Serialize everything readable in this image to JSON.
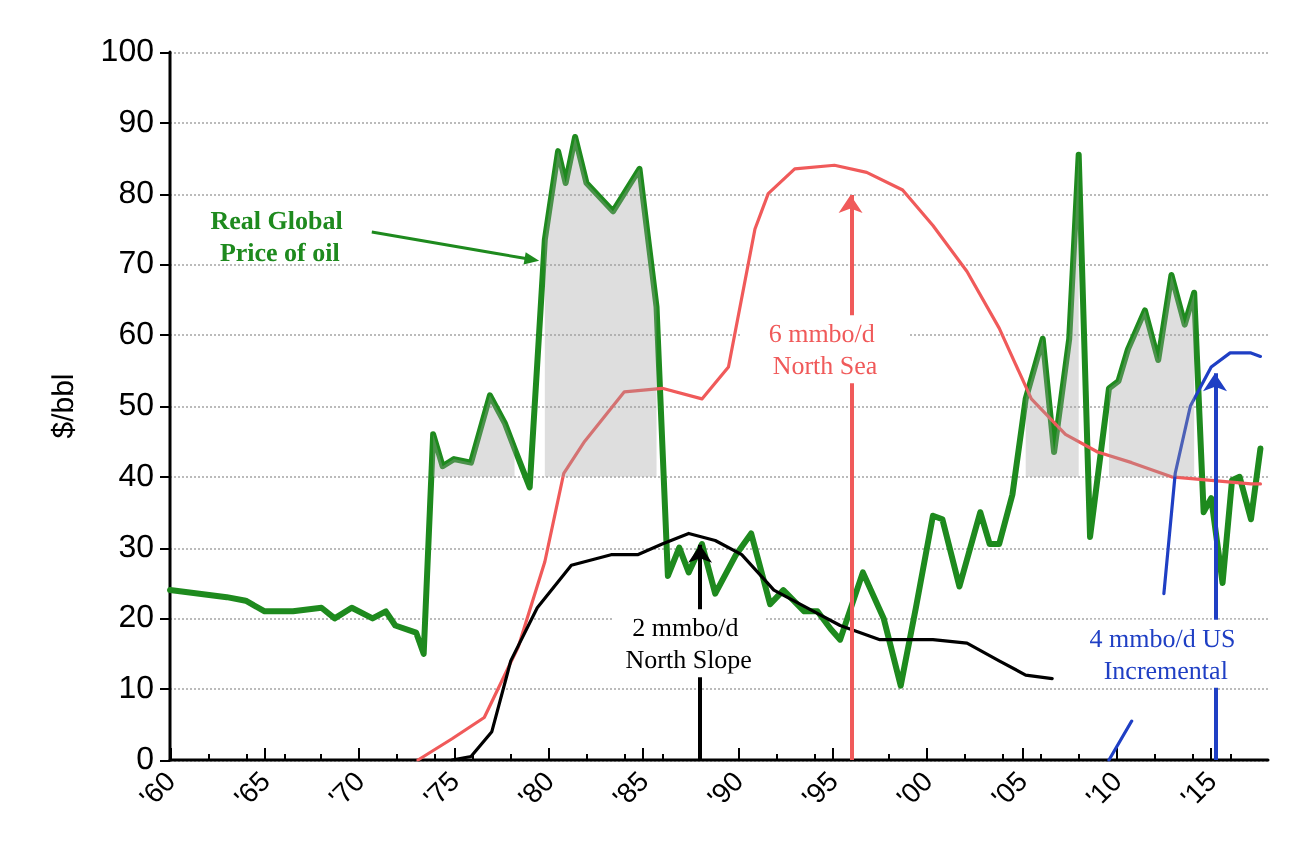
{
  "chart_data": {
    "type": "line",
    "ylabel": "$/bbl",
    "xlim": [
      1960,
      2018
    ],
    "ylim": [
      0,
      100
    ],
    "xticks": [
      {
        "value": 1960,
        "label": "'60"
      },
      {
        "value": 1965,
        "label": "'65"
      },
      {
        "value": 1970,
        "label": "'70"
      },
      {
        "value": 1975,
        "label": "'75"
      },
      {
        "value": 1980,
        "label": "'80"
      },
      {
        "value": 1985,
        "label": "'85"
      },
      {
        "value": 1990,
        "label": "'90"
      },
      {
        "value": 1995,
        "label": "'95"
      },
      {
        "value": 2000,
        "label": "'00"
      },
      {
        "value": 2005,
        "label": "'05"
      },
      {
        "value": 2010,
        "label": "'10"
      },
      {
        "value": 2015,
        "label": "'15"
      }
    ],
    "yticks": [
      0,
      10,
      20,
      30,
      40,
      50,
      60,
      70,
      80,
      90,
      100
    ],
    "grid": "y",
    "line_style": "solid",
    "marker": "none",
    "series": [
      {
        "name": "Real Global Price of oil",
        "color": "#1e8a1e",
        "x": [
          1960,
          1963,
          1964,
          1965,
          1966.5,
          1968,
          1968.7,
          1969.6,
          1970.7,
          1971.4,
          1971.9,
          1973,
          1973.4,
          1973.9,
          1974.4,
          1975,
          1975.9,
          1976.9,
          1977.7,
          1978.2,
          1979,
          1979.8,
          1980.5,
          1980.9,
          1981.4,
          1982,
          1983.4,
          1984.8,
          1985.7,
          1986.3,
          1986.9,
          1987.4,
          1988.1,
          1988.8,
          1989.9,
          1990.7,
          1991.7,
          1992.4,
          1993.5,
          1994.2,
          1994.9,
          1995.4,
          1996.6,
          1997.7,
          1998.6,
          1999.4,
          2000.3,
          2000.8,
          2001.7,
          2002.8,
          2003.3,
          2003.8,
          2004.5,
          2005.2,
          2006.1,
          2006.7,
          2007.5,
          2008,
          2008.6,
          2009.6,
          2010.1,
          2010.6,
          2011.5,
          2012.2,
          2012.9,
          2013.6,
          2014.1,
          2014.6,
          2015,
          2015.6,
          2016.1,
          2016.5,
          2017.1,
          2017.6
        ],
        "values": [
          24,
          23,
          22.5,
          21,
          21,
          21.5,
          20,
          21.5,
          20,
          21,
          19,
          18,
          15,
          46,
          41.5,
          42.5,
          42,
          51.5,
          47.5,
          44,
          38.5,
          73.5,
          86,
          81.5,
          88,
          81.5,
          77.5,
          83.5,
          64,
          26,
          30,
          26.5,
          30.5,
          23.5,
          29,
          32,
          22,
          24,
          21,
          21,
          18.5,
          17,
          26.5,
          20,
          10.5,
          21.5,
          34.5,
          34,
          24.5,
          35,
          30.5,
          30.5,
          37.5,
          51,
          59.5,
          43.5,
          59.5,
          85.5,
          31.5,
          52.5,
          53.5,
          58,
          63.5,
          56.5,
          68.5,
          61.5,
          66,
          35,
          37,
          25,
          39.5,
          40,
          34,
          44
        ],
        "lower": [
          null,
          null,
          null,
          null,
          null,
          null,
          null,
          null,
          null,
          null,
          null,
          null,
          null,
          40,
          40,
          40,
          40,
          40,
          40,
          40,
          null,
          40,
          40,
          40,
          40,
          40,
          40,
          40,
          40,
          null,
          null,
          null,
          null,
          null,
          null,
          null,
          null,
          null,
          null,
          null,
          null,
          null,
          null,
          null,
          null,
          null,
          null,
          null,
          null,
          null,
          null,
          null,
          null,
          40,
          40,
          40,
          40,
          40,
          null,
          40,
          40,
          40,
          40,
          40,
          40,
          40,
          40,
          null,
          null,
          null,
          null,
          null,
          null,
          null
        ],
        "upper": [
          null,
          null,
          null,
          null,
          null,
          null,
          null,
          null,
          null,
          null,
          null,
          null,
          null,
          46,
          41.5,
          42.5,
          42,
          51.5,
          47.5,
          44,
          null,
          73.5,
          86,
          81.5,
          88,
          81.5,
          77.5,
          83.5,
          64,
          null,
          null,
          null,
          null,
          null,
          null,
          null,
          null,
          null,
          null,
          null,
          null,
          null,
          null,
          null,
          null,
          null,
          null,
          null,
          null,
          null,
          null,
          null,
          null,
          51,
          59.5,
          43.5,
          59.5,
          85.5,
          null,
          52.5,
          53.5,
          58,
          63.5,
          56.5,
          68.5,
          61.5,
          66,
          null,
          null,
          null,
          null,
          null,
          null,
          null
        ]
      },
      {
        "name": "6 mmbo/d North Sea",
        "color": "#f05a5a",
        "x": [
          1973.1,
          1974.9,
          1976.6,
          1978.4,
          1979.8,
          1980.8,
          1981.9,
          1984,
          1986,
          1988.1,
          1989.5,
          1990.9,
          1991.6,
          1993,
          1995.1,
          1996.8,
          1998.7,
          2000.3,
          2002.1,
          2003.8,
          2005.5,
          2007.3,
          2009,
          2010.8,
          2012.9,
          2015,
          2017.1,
          2017.6
        ],
        "values": [
          0,
          3,
          6,
          16,
          28,
          40.5,
          45,
          52,
          52.5,
          51,
          55.5,
          75,
          80,
          83.5,
          84,
          83,
          80.5,
          75.5,
          69,
          61,
          51,
          46,
          43.5,
          42,
          40,
          39.5,
          39,
          39
        ]
      },
      {
        "name": "2 mmbo/d North Slope",
        "color": "#000000",
        "x": [
          1974.9,
          1975.9,
          1977,
          1978,
          1979.4,
          1981.2,
          1983.3,
          1984.7,
          1986,
          1987.4,
          1988.8,
          1990.2,
          1991.9,
          1994,
          1995.4,
          1997.5,
          2000.3,
          2002.1,
          2003.8,
          2005.2,
          2006.6
        ],
        "values": [
          0,
          0.5,
          4,
          14,
          21.5,
          27.5,
          29,
          29,
          30.5,
          32,
          31,
          29,
          24,
          21,
          19,
          17,
          17,
          16.5,
          14,
          12,
          11.5
        ]
      },
      {
        "name": "4 mmbo/d US Incremental",
        "color": "#1f3fc4",
        "x": [
          2009.6,
          2010.8,
          2011.5,
          2012.5,
          2013.1,
          2013.9,
          2015,
          2016,
          2017.1,
          2017.6
        ],
        "values": [
          0,
          5.5,
          null,
          23.5,
          40.5,
          50,
          55.5,
          57.5,
          57.5,
          57
        ]
      }
    ]
  }
}
